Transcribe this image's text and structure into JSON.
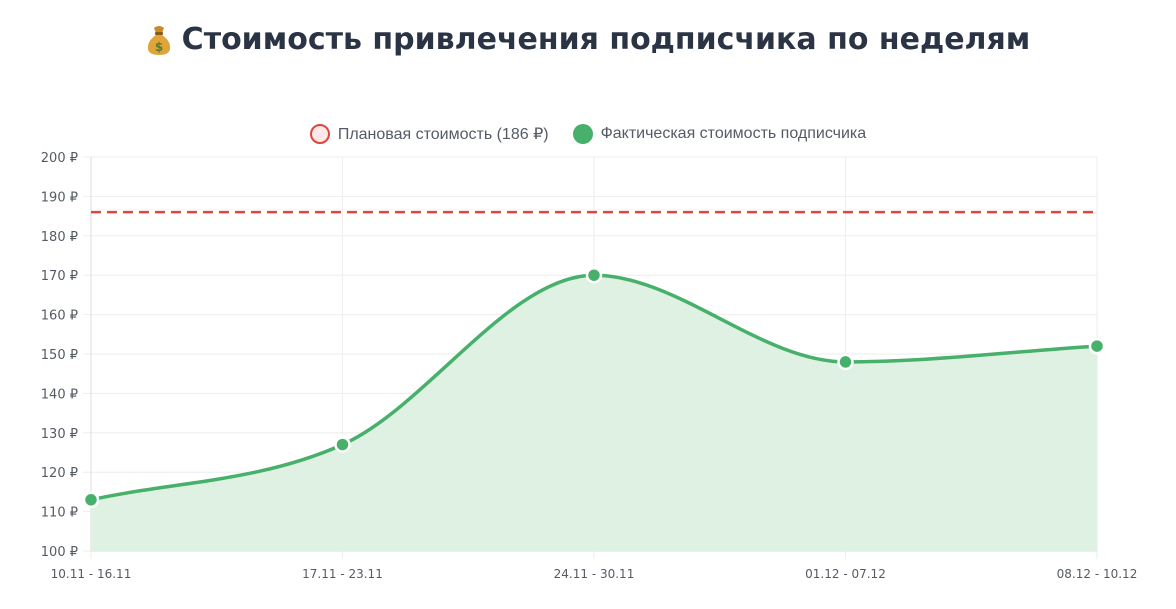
{
  "title": "Стоимость привлечения подписчика по неделям",
  "title_icon": "money-bag-icon",
  "legend": {
    "plan_label": "Плановая стоимость (186 ₽)",
    "actual_label": "Фактическая стоимость подписчика"
  },
  "colors": {
    "plan": "#e0453c",
    "actual": "#47b06a",
    "actual_fill": "#dff1e3",
    "grid": "#eeeeee",
    "tick_text": "#555b66"
  },
  "chart_data": {
    "type": "line",
    "categories": [
      "10.11 - 16.11",
      "17.11 - 23.11",
      "24.11 - 30.11",
      "01.12 - 07.12",
      "08.12 - 10.12"
    ],
    "series": [
      {
        "name": "Фактическая стоимость подписчика",
        "values": [
          113,
          127,
          170,
          148,
          152
        ],
        "fill": true,
        "smooth": true
      },
      {
        "name": "Плановая стоимость (186 ₽)",
        "values": [
          186,
          186,
          186,
          186,
          186
        ],
        "dashed": true
      }
    ],
    "ylim": [
      100,
      200
    ],
    "y_step": 10,
    "y_tick_suffix": " ₽",
    "grid": true,
    "legend_position": "top-center"
  }
}
